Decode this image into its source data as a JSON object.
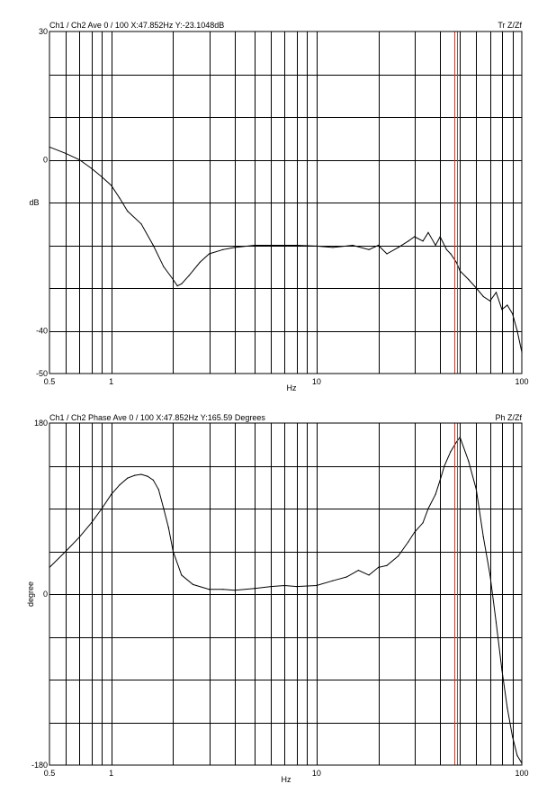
{
  "chart_data": [
    {
      "type": "line",
      "header_left": "Ch1 / Ch2  Ave 0 / 100  X:47.852Hz  Y:-23.1048dB",
      "header_right": "Tr Z/Zf",
      "xlabel": "Hz",
      "ylabel": "dB",
      "x_scale": "log",
      "xlim": [
        0.5,
        100
      ],
      "ylim": [
        -50,
        30
      ],
      "x_tick_labels": [
        "0.5",
        "1",
        "10",
        "100"
      ],
      "y_tick_labels": [
        "30",
        "0",
        "-40",
        "-50"
      ],
      "grid": true,
      "cursor_x": 47.852,
      "series": [
        {
          "x": [
            0.5,
            0.6,
            0.7,
            0.8,
            0.9,
            1.0,
            1.1,
            1.2,
            1.4,
            1.6,
            1.8,
            2.0,
            2.1,
            2.2,
            2.4,
            2.7,
            3.0,
            3.5,
            4.0,
            5.0,
            6.0,
            8.0,
            10,
            12,
            15,
            18,
            20,
            22,
            25,
            28,
            30,
            33,
            35,
            38,
            40,
            43,
            45,
            48,
            50,
            55,
            60,
            65,
            70,
            75,
            80,
            85,
            90,
            95,
            100
          ],
          "y": [
            3,
            1.5,
            0,
            -2,
            -4,
            -6,
            -9,
            -12,
            -15,
            -20,
            -25,
            -28,
            -29.5,
            -29,
            -27,
            -24,
            -22,
            -21,
            -20.5,
            -20,
            -20,
            -20,
            -20.2,
            -20.5,
            -20,
            -21,
            -20,
            -22,
            -20.5,
            -19,
            -18,
            -19,
            -17,
            -20,
            -18,
            -21,
            -22,
            -24,
            -26,
            -28,
            -30,
            -32,
            -33,
            -31,
            -35,
            -34,
            -36,
            -40,
            -45
          ]
        }
      ]
    },
    {
      "type": "line",
      "header_left": "Ch1 / Ch2  Phase Ave 0 / 100  X:47.852Hz  Y:165.59 Degrees",
      "header_right": "Ph Z/Zf",
      "xlabel": "Hz",
      "ylabel": "degree",
      "x_scale": "log",
      "xlim": [
        0.5,
        100
      ],
      "ylim": [
        -180,
        180
      ],
      "x_tick_labels": [
        "0.5",
        "1",
        "10",
        "100"
      ],
      "y_tick_labels": [
        "180",
        "0",
        "-180"
      ],
      "grid": true,
      "cursor_x": 47.852,
      "series": [
        {
          "x": [
            0.5,
            0.6,
            0.7,
            0.8,
            0.9,
            1.0,
            1.1,
            1.2,
            1.3,
            1.4,
            1.5,
            1.6,
            1.7,
            1.8,
            1.9,
            2.0,
            2.2,
            2.5,
            3.0,
            3.5,
            4.0,
            5.0,
            6.0,
            7.0,
            8.0,
            10,
            12,
            14,
            16,
            18,
            20,
            22,
            25,
            28,
            30,
            33,
            35,
            38,
            40,
            42,
            45,
            48,
            50,
            55,
            60,
            65,
            70,
            75,
            80,
            85,
            90,
            95,
            100
          ],
          "y": [
            28,
            45,
            60,
            75,
            90,
            105,
            115,
            122,
            125,
            126,
            124,
            120,
            110,
            90,
            70,
            45,
            20,
            10,
            5,
            5,
            4,
            6,
            8,
            9,
            8,
            9,
            14,
            18,
            25,
            20,
            28,
            30,
            40,
            55,
            65,
            75,
            90,
            105,
            120,
            135,
            150,
            160,
            165,
            140,
            110,
            60,
            20,
            -30,
            -80,
            -120,
            -150,
            -170,
            -178
          ]
        }
      ]
    }
  ]
}
